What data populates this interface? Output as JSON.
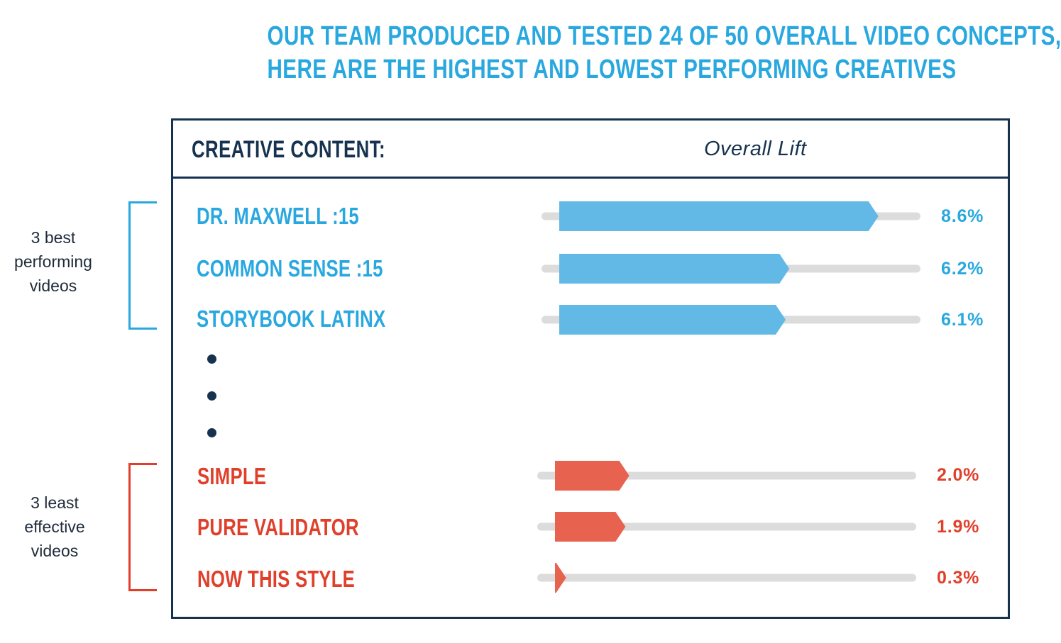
{
  "headline": {
    "line1": "OUR TEAM PRODUCED AND TESTED 24 OF 50 OVERALL VIDEO CONCEPTS,",
    "line2": "HERE ARE THE HIGHEST AND LOWEST PERFORMING CREATIVES"
  },
  "groups": {
    "best": {
      "line1": "3 best",
      "line2": "performing",
      "line3": "videos"
    },
    "worst": {
      "line1": "3 least",
      "line2": "effective",
      "line3": "videos"
    }
  },
  "header": {
    "content_label": "CREATIVE CONTENT:",
    "lift_label": "Overall Lift"
  },
  "colors": {
    "best": "#29a8df",
    "best_bar": "#62b9e6",
    "worst": "#e0402b",
    "worst_bar": "#e8634f",
    "track": "#dcdcdc",
    "frame": "#16324f"
  },
  "chart_data": {
    "type": "bar",
    "orientation": "horizontal",
    "ylabel": "Overall Lift",
    "xlim": [
      0,
      10
    ],
    "categories": [
      "DR. MAXWELL :15",
      "COMMON SENSE :15",
      "STORYBOOK LATINX",
      "SIMPLE",
      "PURE VALIDATOR",
      "NOW THIS STYLE"
    ],
    "values": [
      8.6,
      6.2,
      6.1,
      2.0,
      1.9,
      0.3
    ],
    "labels": [
      "8.6%",
      "6.2%",
      "6.1%",
      "2.0%",
      "1.9%",
      "0.3%"
    ],
    "groups": [
      "best",
      "best",
      "best",
      "worst",
      "worst",
      "worst"
    ]
  }
}
